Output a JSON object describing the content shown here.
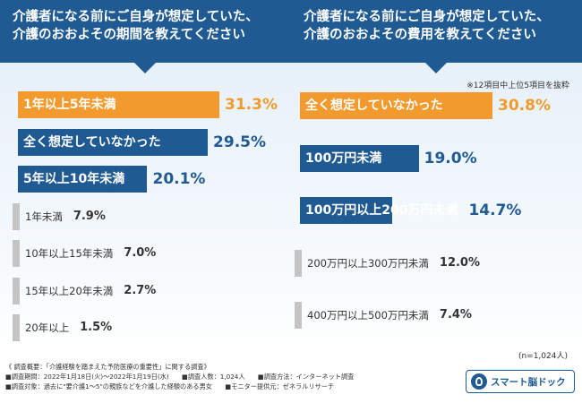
{
  "left_header": [
    "介護者になる前にご自身が想定していた、",
    "介護のおおよその期間を教えてください"
  ],
  "right_header": [
    "介護者になる前にご自身が想定していた、",
    "介護のおおよその費用を教えてください"
  ],
  "right_note": "※12項目中上位5項目を抜粋",
  "sample_size": "(n=1,024人)",
  "colors": {
    "orange": "#f29a2e",
    "blue": "#1f5a93",
    "gray": "#c4c4c4",
    "header": "#1f5a93"
  },
  "chart_data": [
    {
      "type": "bar",
      "orientation": "horizontal",
      "title": "介護者になる前にご自身が想定していた、介護のおおよその期間を教えてください",
      "categories": [
        "1年以上5年未満",
        "全く想定していなかった",
        "5年以上10年未満",
        "1年未満",
        "10年以上15年未満",
        "15年以上20年未満",
        "20年以上"
      ],
      "values": [
        31.3,
        29.5,
        20.1,
        7.9,
        7.0,
        2.7,
        1.5
      ],
      "value_labels": [
        "31.3%",
        "29.5%",
        "20.1%",
        "7.9%",
        "7.0%",
        "2.7%",
        "1.5%"
      ],
      "unit": "%"
    },
    {
      "type": "bar",
      "orientation": "horizontal",
      "title": "介護者になる前にご自身が想定していた、介護のおおよその費用を教えてください",
      "categories": [
        "全く想定していなかった",
        "100万円未満",
        "100万円以上200万円未満",
        "200万円以上300万円未満",
        "400万円以上500万円未満"
      ],
      "values": [
        30.8,
        19.0,
        14.7,
        12.0,
        7.4
      ],
      "value_labels": [
        "30.8%",
        "19.0%",
        "14.7%",
        "12.0%",
        "7.4%"
      ],
      "unit": "%"
    }
  ],
  "footer": [
    "《 調査概要：「介護経験を踏まえた予防医療の重要性」に関する調査》",
    "■調査期間：2022年1月18日(火)～2022年1月19日(水)　　■調査人数：1,024人　　■調査方法：インターネット調査",
    "■調査対象：過去に\"要介護1～5\"の親族などを介護した経験のある男女　　■モニター提供元：ゼネラルリサーチ"
  ],
  "logo_text": "スマート脳ドック",
  "logo_icon": "brain-icon"
}
